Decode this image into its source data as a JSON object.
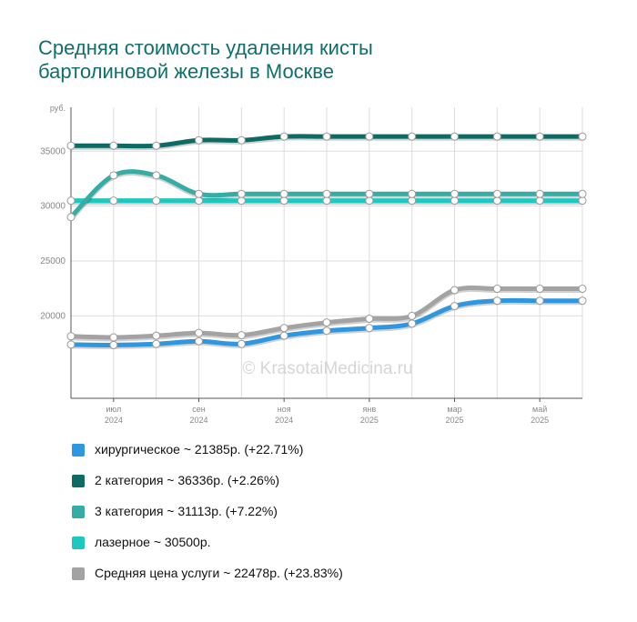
{
  "title_lines": [
    "Средняя стоимость удаления кисты",
    "бартолиновой железы в Москве"
  ],
  "watermark": "© KrasotaiMedicina.ru",
  "chart_data": {
    "type": "line",
    "y_unit": "руб.",
    "ylim": [
      12500,
      39000
    ],
    "y_ticks": [
      20000,
      25000,
      30000,
      35000
    ],
    "y_tick_labels": [
      "20000",
      "25000",
      "30000",
      "35000"
    ],
    "x": [
      "2024-05",
      "2024-06",
      "2024-07",
      "2024-08",
      "2024-09",
      "2024-10",
      "2024-11",
      "2024-12",
      "2025-01",
      "2025-02",
      "2025-03",
      "2025-04",
      "2025-05"
    ],
    "x_tick_labels": [
      {
        "x": "2024-06",
        "month": "июл",
        "year": "2024"
      },
      {
        "x": "2024-08",
        "month": "сен",
        "year": "2024"
      },
      {
        "x": "2024-10",
        "month": "ноя",
        "year": "2024"
      },
      {
        "x": "2024-12",
        "month": "янв",
        "year": "2025"
      },
      {
        "x": "2025-02",
        "month": "мар",
        "year": "2025"
      },
      {
        "x": "2025-04",
        "month": "май",
        "year": "2025"
      }
    ],
    "grid": true,
    "legend_position": "bottom",
    "series": [
      {
        "name": "хирургическое",
        "color": "#2f96e0",
        "values": [
          17400,
          17350,
          17450,
          17700,
          17450,
          18200,
          18650,
          18900,
          19300,
          20900,
          21385,
          21385,
          21385
        ],
        "legend_text": "хирургическое ~ 21385р. (+22.71%)"
      },
      {
        "name": "2 категория",
        "color": "#0d6b63",
        "values": [
          35500,
          35500,
          35500,
          36000,
          36000,
          36336,
          36336,
          36336,
          36336,
          36336,
          36336,
          36336,
          36336
        ],
        "legend_text": "2 категория ~ 36336р. (+2.26%)"
      },
      {
        "name": "3 категория",
        "color": "#36ada4",
        "values": [
          29000,
          32800,
          32800,
          31113,
          31113,
          31113,
          31113,
          31113,
          31113,
          31113,
          31113,
          31113,
          31113
        ],
        "legend_text": "3 категория ~ 31113р. (+7.22%)"
      },
      {
        "name": "лазерное",
        "color": "#1ec8c0",
        "values": [
          30500,
          30500,
          30500,
          30500,
          30500,
          30500,
          30500,
          30500,
          30500,
          30500,
          30500,
          30500,
          30500
        ],
        "legend_text": "лазерное ~ 30500р."
      },
      {
        "name": "Средняя цена услуги",
        "color": "#a3a3a3",
        "values": [
          18150,
          18050,
          18200,
          18450,
          18250,
          18900,
          19400,
          19750,
          20000,
          22350,
          22478,
          22478,
          22478
        ],
        "legend_text": "Средняя цена услуги ~ 22478р. (+23.83%)"
      }
    ]
  }
}
